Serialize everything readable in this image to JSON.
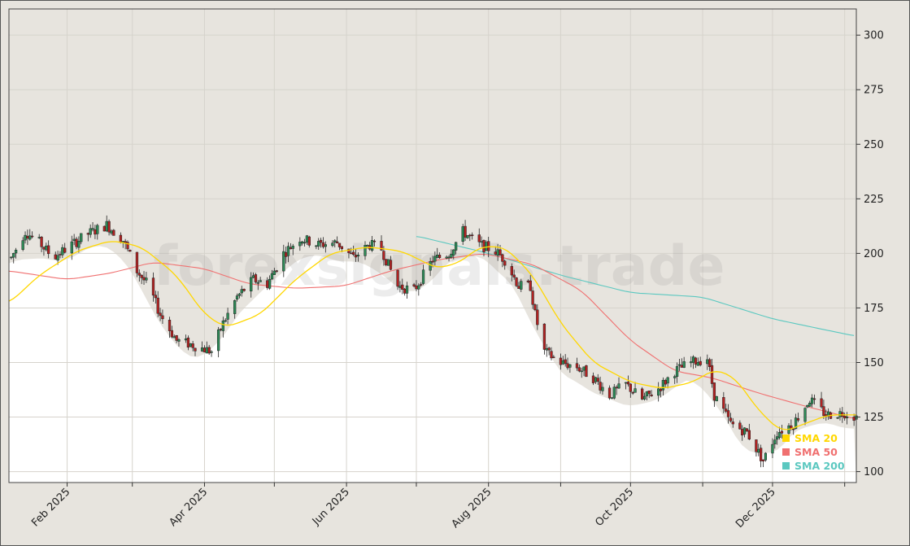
{
  "watermark": "forexsignals.trade",
  "colors": {
    "background": "#e7e4de",
    "plot_below": "#ffffff",
    "bull_candle": "#2e8b57",
    "bear_candle": "#b22222",
    "sma20": "#ffd700",
    "sma50": "#f07070",
    "sma200": "#5bc8c0"
  },
  "chart_data": {
    "type": "candlestick",
    "title": "",
    "xlabel": "",
    "ylabel": "",
    "x_range": [
      "2025-01-07",
      "2026-01-06"
    ],
    "ylim": [
      95,
      312
    ],
    "y_ticks": [
      100,
      125,
      150,
      175,
      200,
      225,
      250,
      275,
      300
    ],
    "x_ticks": [
      {
        "date": "2025-02-01",
        "label": "Feb 2025"
      },
      {
        "date": "2025-03-01",
        "label": ""
      },
      {
        "date": "2025-04-01",
        "label": "Apr 2025"
      },
      {
        "date": "2025-05-01",
        "label": ""
      },
      {
        "date": "2025-06-01",
        "label": "Jun 2025"
      },
      {
        "date": "2025-07-01",
        "label": ""
      },
      {
        "date": "2025-08-01",
        "label": "Aug 2025"
      },
      {
        "date": "2025-09-01",
        "label": ""
      },
      {
        "date": "2025-10-01",
        "label": "Oct 2025"
      },
      {
        "date": "2025-11-01",
        "label": ""
      },
      {
        "date": "2025-12-01",
        "label": "Dec 2025"
      },
      {
        "date": "2026-01-01",
        "label": ""
      }
    ],
    "grid": true,
    "legend_position": "bottom-right",
    "legend": [
      {
        "label": "SMA 20",
        "color": "#ffd700"
      },
      {
        "label": "SMA 50",
        "color": "#f07070"
      },
      {
        "label": "SMA 200",
        "color": "#5bc8c0"
      }
    ],
    "price_anchors": [
      [
        "2025-01-08",
        198
      ],
      [
        "2025-01-14",
        210
      ],
      [
        "2025-01-20",
        205
      ],
      [
        "2025-01-26",
        198
      ],
      [
        "2025-02-03",
        204
      ],
      [
        "2025-02-10",
        209
      ],
      [
        "2025-02-18",
        213
      ],
      [
        "2025-02-25",
        206
      ],
      [
        "2025-03-03",
        192
      ],
      [
        "2025-03-08",
        185
      ],
      [
        "2025-03-13",
        172
      ],
      [
        "2025-03-20",
        160
      ],
      [
        "2025-03-27",
        158
      ],
      [
        "2025-04-04",
        155
      ],
      [
        "2025-04-09",
        168
      ],
      [
        "2025-04-15",
        180
      ],
      [
        "2025-04-22",
        188
      ],
      [
        "2025-04-28",
        186
      ],
      [
        "2025-05-05",
        200
      ],
      [
        "2025-05-12",
        207
      ],
      [
        "2025-05-20",
        204
      ],
      [
        "2025-05-28",
        205
      ],
      [
        "2025-06-04",
        198
      ],
      [
        "2025-06-11",
        204
      ],
      [
        "2025-06-16",
        202
      ],
      [
        "2025-06-23",
        185
      ],
      [
        "2025-06-30",
        183
      ],
      [
        "2025-07-08",
        197
      ],
      [
        "2025-07-15",
        200
      ],
      [
        "2025-07-21",
        210
      ],
      [
        "2025-07-28",
        204
      ],
      [
        "2025-08-04",
        201
      ],
      [
        "2025-08-08",
        197
      ],
      [
        "2025-08-14",
        185
      ],
      [
        "2025-08-19",
        185
      ],
      [
        "2025-08-21",
        172
      ],
      [
        "2025-08-25",
        155
      ],
      [
        "2025-09-01",
        150
      ],
      [
        "2025-09-08",
        148
      ],
      [
        "2025-09-15",
        143
      ],
      [
        "2025-09-22",
        135
      ],
      [
        "2025-09-29",
        140
      ],
      [
        "2025-10-06",
        133
      ],
      [
        "2025-10-13",
        138
      ],
      [
        "2025-10-20",
        146
      ],
      [
        "2025-10-27",
        150
      ],
      [
        "2025-11-03",
        152
      ],
      [
        "2025-11-06",
        135
      ],
      [
        "2025-11-13",
        122
      ],
      [
        "2025-11-20",
        118
      ],
      [
        "2025-11-27",
        105
      ],
      [
        "2025-12-03",
        118
      ],
      [
        "2025-12-10",
        122
      ],
      [
        "2025-12-17",
        133
      ],
      [
        "2025-12-24",
        126
      ],
      [
        "2026-01-01",
        127
      ],
      [
        "2026-01-06",
        125
      ]
    ],
    "sma20_anchors": [
      [
        "2025-01-07",
        177
      ],
      [
        "2025-01-20",
        190
      ],
      [
        "2025-02-05",
        201
      ],
      [
        "2025-02-20",
        206
      ],
      [
        "2025-03-05",
        203
      ],
      [
        "2025-03-20",
        190
      ],
      [
        "2025-04-01",
        172
      ],
      [
        "2025-04-10",
        166
      ],
      [
        "2025-04-25",
        172
      ],
      [
        "2025-05-10",
        188
      ],
      [
        "2025-05-25",
        200
      ],
      [
        "2025-06-10",
        203
      ],
      [
        "2025-06-25",
        201
      ],
      [
        "2025-07-10",
        193
      ],
      [
        "2025-07-20",
        196
      ],
      [
        "2025-07-28",
        203
      ],
      [
        "2025-08-08",
        203
      ],
      [
        "2025-08-20",
        190
      ],
      [
        "2025-09-01",
        168
      ],
      [
        "2025-09-15",
        150
      ],
      [
        "2025-10-01",
        141
      ],
      [
        "2025-10-15",
        138
      ],
      [
        "2025-10-28",
        141
      ],
      [
        "2025-11-06",
        147
      ],
      [
        "2025-11-15",
        143
      ],
      [
        "2025-11-25",
        128
      ],
      [
        "2025-12-05",
        118
      ],
      [
        "2025-12-15",
        122
      ],
      [
        "2025-12-25",
        126
      ],
      [
        "2026-01-06",
        126
      ]
    ],
    "sma50_anchors": [
      [
        "2025-01-07",
        192
      ],
      [
        "2025-02-01",
        188
      ],
      [
        "2025-02-20",
        191
      ],
      [
        "2025-03-10",
        196
      ],
      [
        "2025-04-01",
        193
      ],
      [
        "2025-04-20",
        186
      ],
      [
        "2025-05-10",
        184
      ],
      [
        "2025-05-31",
        185
      ],
      [
        "2025-06-20",
        192
      ],
      [
        "2025-07-10",
        197
      ],
      [
        "2025-07-30",
        200
      ],
      [
        "2025-08-20",
        195
      ],
      [
        "2025-09-10",
        183
      ],
      [
        "2025-10-01",
        160
      ],
      [
        "2025-10-20",
        146
      ],
      [
        "2025-11-05",
        143
      ],
      [
        "2025-11-25",
        136
      ],
      [
        "2025-12-15",
        130
      ],
      [
        "2026-01-06",
        124
      ]
    ],
    "sma200_anchors": [
      [
        "2025-07-01",
        208
      ],
      [
        "2025-08-01",
        200
      ],
      [
        "2025-09-01",
        190
      ],
      [
        "2025-10-01",
        182
      ],
      [
        "2025-11-01",
        180
      ],
      [
        "2025-12-01",
        170
      ],
      [
        "2026-01-06",
        162
      ]
    ]
  }
}
